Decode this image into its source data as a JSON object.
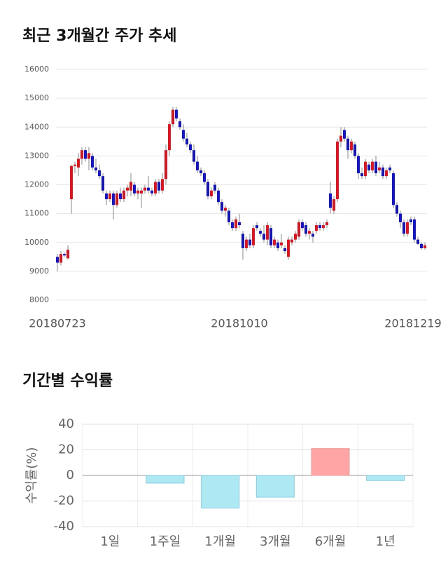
{
  "chart_data": [
    {
      "type": "candlestick",
      "title": "최근 3개월간 주가 추세",
      "categories": [
        "20180723",
        null,
        null,
        null,
        null,
        null,
        null,
        null,
        null,
        null,
        null,
        null,
        null,
        null,
        null,
        null,
        null,
        null,
        null,
        null,
        null,
        null,
        null,
        null,
        null,
        null,
        null,
        null,
        null,
        null,
        null,
        null,
        null,
        null,
        null,
        null,
        null,
        null,
        null,
        null,
        null,
        null,
        null,
        null,
        null,
        null,
        null,
        null,
        null,
        null,
        null,
        null,
        "20181010",
        null,
        null,
        null,
        null,
        null,
        null,
        null,
        null,
        null,
        null,
        null,
        null,
        null,
        null,
        null,
        null,
        null,
        null,
        null,
        null,
        null,
        null,
        null,
        null,
        null,
        null,
        null,
        null,
        null,
        null,
        null,
        null,
        null,
        null,
        null,
        null,
        null,
        null,
        null,
        null,
        null,
        null,
        null,
        null,
        null,
        null,
        null,
        null,
        null,
        null,
        null,
        null,
        "20181219"
      ],
      "ohlc": [
        [
          9500,
          9600,
          9000,
          9300
        ],
        [
          9300,
          9700,
          9200,
          9600
        ],
        [
          9600,
          9650,
          9500,
          9550
        ],
        [
          9450,
          9900,
          9400,
          9750
        ],
        [
          11500,
          12700,
          11000,
          12650
        ],
        [
          12650,
          12800,
          12400,
          12700
        ],
        [
          12600,
          13100,
          12300,
          12900
        ],
        [
          12900,
          13300,
          12700,
          13200
        ],
        [
          13200,
          13300,
          12800,
          12900
        ],
        [
          12900,
          13300,
          12500,
          13100
        ],
        [
          13000,
          13100,
          12500,
          12600
        ],
        [
          12600,
          12900,
          12400,
          12500
        ],
        [
          12500,
          12700,
          12200,
          12300
        ],
        [
          12300,
          12400,
          11700,
          11800
        ],
        [
          11700,
          11800,
          11300,
          11500
        ],
        [
          11500,
          11800,
          11400,
          11700
        ],
        [
          11700,
          11800,
          10800,
          11300
        ],
        [
          11300,
          11800,
          11200,
          11700
        ],
        [
          11700,
          11900,
          11400,
          11500
        ],
        [
          11500,
          11900,
          11400,
          11800
        ],
        [
          11800,
          12000,
          11600,
          11900
        ],
        [
          11800,
          12400,
          11600,
          12100
        ],
        [
          12000,
          12100,
          11600,
          11700
        ],
        [
          11700,
          11900,
          11500,
          11800
        ],
        [
          11700,
          11900,
          11200,
          11800
        ],
        [
          11800,
          12000,
          11700,
          11900
        ],
        [
          11900,
          12300,
          11700,
          11800
        ],
        [
          11800,
          11900,
          11600,
          11700
        ],
        [
          11700,
          12200,
          11600,
          12100
        ],
        [
          12100,
          12200,
          11700,
          11800
        ],
        [
          11800,
          12400,
          11700,
          12200
        ],
        [
          12200,
          13400,
          12000,
          13200
        ],
        [
          13200,
          14200,
          13000,
          14100
        ],
        [
          14100,
          14700,
          14000,
          14600
        ],
        [
          14600,
          14700,
          14200,
          14300
        ],
        [
          14200,
          14300,
          13900,
          14000
        ],
        [
          13900,
          14100,
          13500,
          13600
        ],
        [
          13600,
          13800,
          13300,
          13400
        ],
        [
          13400,
          13500,
          13100,
          13200
        ],
        [
          13200,
          13400,
          12700,
          12800
        ],
        [
          12800,
          13000,
          12400,
          12500
        ],
        [
          12500,
          12600,
          12300,
          12400
        ],
        [
          12400,
          12500,
          12000,
          12100
        ],
        [
          12100,
          12200,
          11500,
          11600
        ],
        [
          11600,
          11900,
          11500,
          11800
        ],
        [
          12000,
          12100,
          11700,
          11800
        ],
        [
          11800,
          11900,
          11300,
          11400
        ],
        [
          11400,
          11500,
          11000,
          11100
        ],
        [
          11100,
          11300,
          10900,
          11200
        ],
        [
          11100,
          11200,
          10600,
          10700
        ],
        [
          10700,
          10800,
          10400,
          10500
        ],
        [
          10500,
          10900,
          10400,
          10800
        ],
        [
          10700,
          11000,
          10500,
          10600
        ],
        [
          10300,
          10400,
          9400,
          9800
        ],
        [
          9800,
          10200,
          9700,
          10100
        ],
        [
          10100,
          10300,
          9800,
          9900
        ],
        [
          9900,
          10600,
          9800,
          10500
        ],
        [
          10600,
          10700,
          10400,
          10500
        ],
        [
          10400,
          10500,
          10200,
          10300
        ],
        [
          10300,
          10600,
          10000,
          10100
        ],
        [
          10100,
          10700,
          9900,
          10600
        ],
        [
          10500,
          10600,
          9800,
          9900
        ],
        [
          9900,
          10200,
          9800,
          10100
        ],
        [
          10000,
          10100,
          9700,
          9800
        ],
        [
          9900,
          10300,
          9800,
          10000
        ],
        [
          9800,
          9900,
          9600,
          9700
        ],
        [
          9500,
          10200,
          9400,
          10100
        ],
        [
          10000,
          10200,
          9900,
          10100
        ],
        [
          10100,
          10400,
          10000,
          10300
        ],
        [
          10200,
          10800,
          10100,
          10700
        ],
        [
          10700,
          10800,
          10400,
          10500
        ],
        [
          10600,
          10700,
          10200,
          10300
        ],
        [
          10300,
          10500,
          10100,
          10400
        ],
        [
          10300,
          10400,
          10000,
          10200
        ],
        [
          10400,
          10700,
          10300,
          10600
        ],
        [
          10600,
          10700,
          10400,
          10500
        ],
        [
          10500,
          10700,
          10400,
          10600
        ],
        [
          10600,
          10800,
          10500,
          10700
        ],
        [
          11700,
          12100,
          11000,
          11200
        ],
        [
          11100,
          11600,
          11000,
          11500
        ],
        [
          11500,
          13600,
          11400,
          13500
        ],
        [
          13500,
          14000,
          13300,
          13700
        ],
        [
          13900,
          14000,
          13500,
          13600
        ],
        [
          13600,
          13700,
          12900,
          13200
        ],
        [
          13200,
          13600,
          13100,
          13500
        ],
        [
          13400,
          13500,
          12900,
          13000
        ],
        [
          13000,
          13100,
          12200,
          12400
        ],
        [
          12400,
          12600,
          12200,
          12300
        ],
        [
          12300,
          12900,
          12200,
          12800
        ],
        [
          12700,
          12800,
          12400,
          12500
        ],
        [
          12500,
          12900,
          12400,
          12800
        ],
        [
          12800,
          13000,
          12300,
          12400
        ],
        [
          12500,
          12800,
          12400,
          12600
        ],
        [
          12600,
          12700,
          12200,
          12300
        ],
        [
          12300,
          12600,
          12200,
          12500
        ],
        [
          12600,
          12700,
          12400,
          12500
        ],
        [
          12400,
          12500,
          11200,
          11300
        ],
        [
          11300,
          11400,
          10900,
          11000
        ],
        [
          11000,
          11100,
          10500,
          10700
        ],
        [
          10700,
          10800,
          10200,
          10300
        ],
        [
          10300,
          10800,
          10200,
          10700
        ],
        [
          10800,
          10900,
          10600,
          10700
        ],
        [
          10800,
          10900,
          10000,
          10100
        ],
        [
          10100,
          10200,
          9900,
          9950
        ],
        [
          9950,
          10000,
          9750,
          9800
        ],
        [
          9800,
          10000,
          9750,
          9900
        ]
      ],
      "up_color": "#e0141e",
      "down_color": "#1414c8",
      "ylim": [
        8000,
        16000
      ],
      "yticks": [
        8000,
        9000,
        10000,
        11000,
        12000,
        13000,
        14000,
        15000,
        16000
      ],
      "grid": true
    },
    {
      "type": "bar",
      "title": "기간별 수익률",
      "y_label": "수익률(%)",
      "categories": [
        "1일",
        "1주일",
        "1개월",
        "3개월",
        "6개월",
        "1년"
      ],
      "values": [
        0,
        -6,
        -25.5,
        -17,
        21,
        -4
      ],
      "positive_color": "#ffa5a5",
      "negative_color": "#aee9f3",
      "ylim": [
        -40,
        40
      ],
      "yticks": [
        -40,
        -20,
        0,
        20,
        40
      ],
      "grid": true
    }
  ]
}
